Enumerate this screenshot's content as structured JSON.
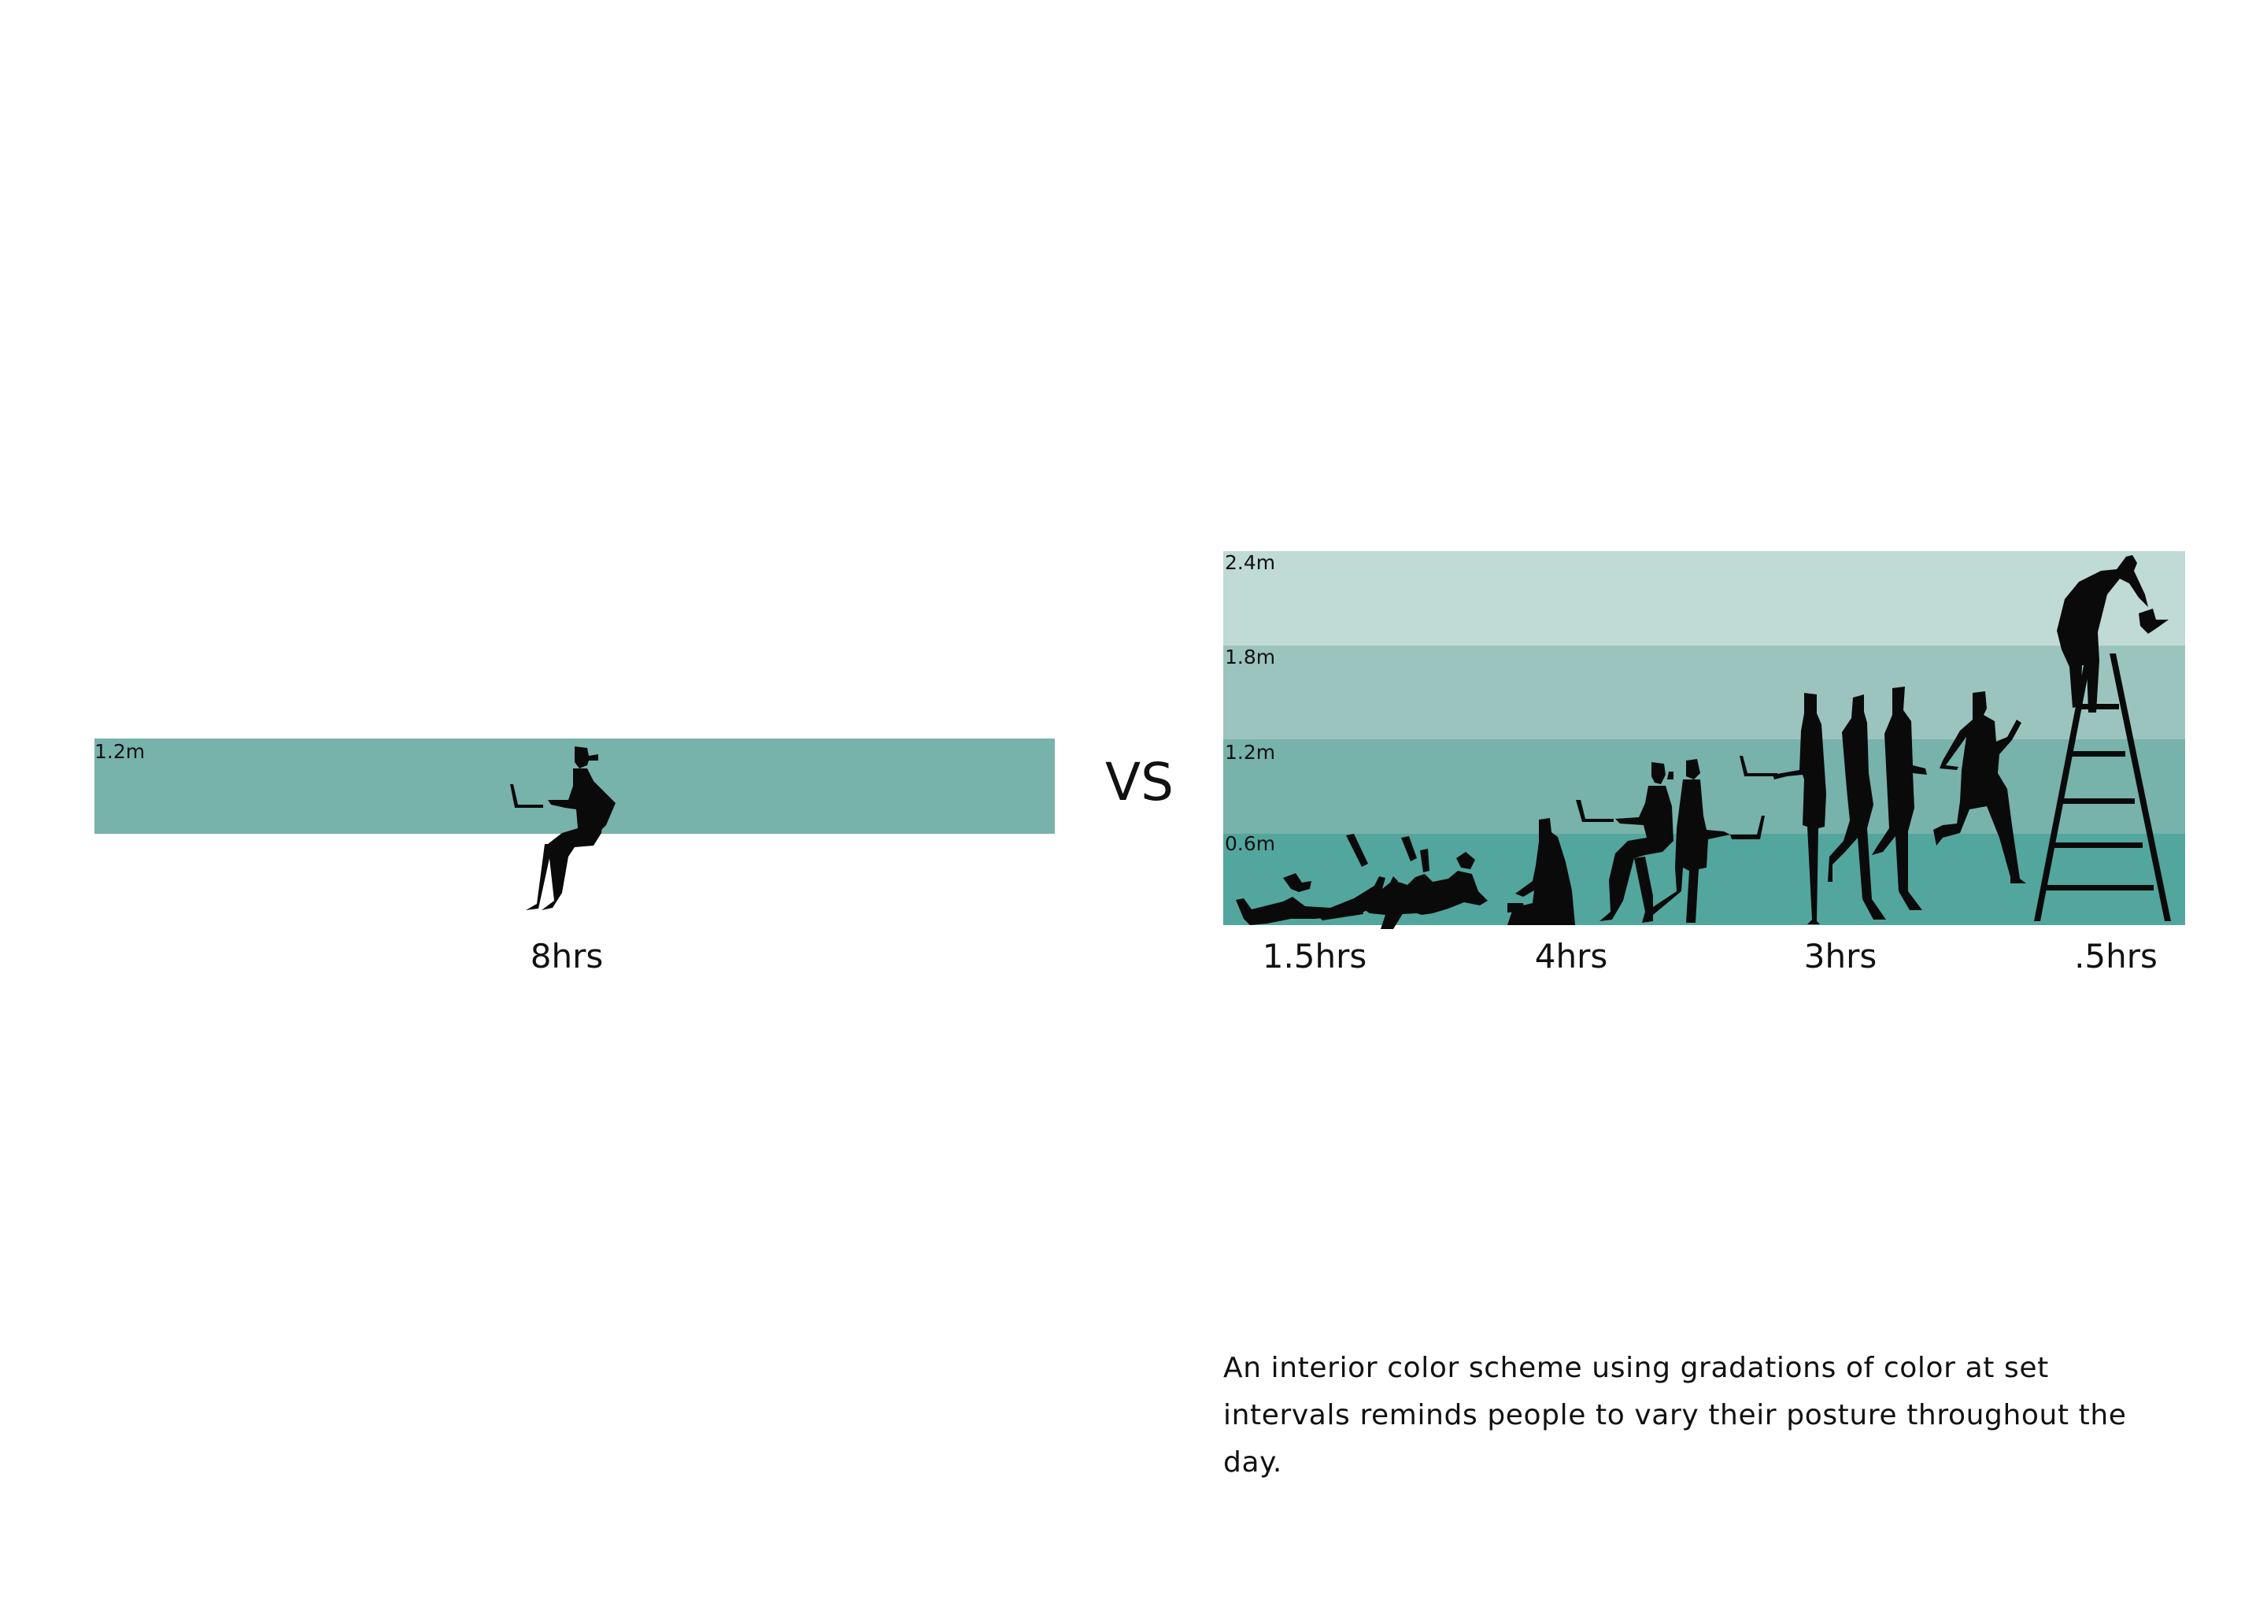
{
  "colors": {
    "level_0_0_6": "#53a69d",
    "level_0_6_1_2": "#77b2ab",
    "level_1_2_1_8": "#9cc4bf",
    "level_1_8_2_4": "#c0dad6",
    "figure": "#0a0a0a"
  },
  "left_panel": {
    "height_label": "1.2m",
    "duration_label": "8hrs",
    "figures": [
      "sitting-with-laptop-icon"
    ]
  },
  "vs_label": "VS",
  "right_panel": {
    "height_labels": [
      "2.4m",
      "1.8m",
      "1.2m",
      "0.6m"
    ],
    "groups": [
      {
        "duration_label": "1.5hrs",
        "figures": [
          "lying-reclining-person-icon",
          "lying-reclining-person-icon"
        ]
      },
      {
        "duration_label": "4hrs",
        "figures": [
          "floor-sitting-person-icon",
          "sitting-with-laptop-icon",
          "kneeling-with-laptop-icon"
        ]
      },
      {
        "duration_label": "3hrs",
        "figures": [
          "standing-with-laptop-icon",
          "walking-person-icon",
          "walking-person-icon"
        ]
      },
      {
        "duration_label": ".5hrs",
        "figures": [
          "running-person-icon",
          "ladder-icon",
          "person-on-ladder-icon"
        ]
      }
    ]
  },
  "caption": "An interior color scheme using gradations of color at set intervals reminds people to vary their posture throughout the day."
}
